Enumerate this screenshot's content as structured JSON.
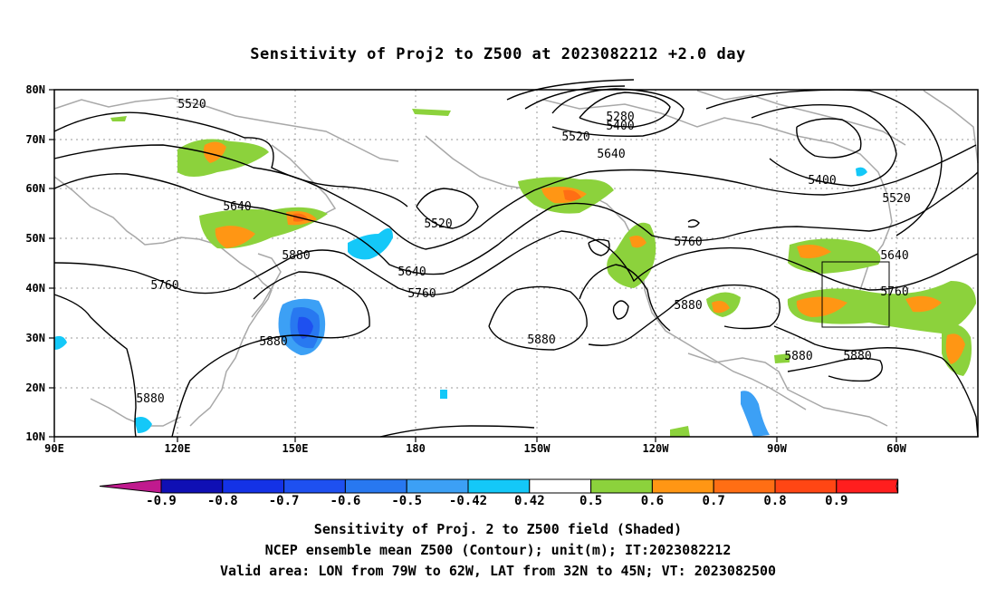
{
  "title": "Sensitivity of Proj2 to Z500 at 2023082212 +2.0 day",
  "captions": [
    "Sensitivity of Proj. 2 to Z500 field (Shaded)",
    "NCEP ensemble mean Z500 (Contour); unit(m); IT:2023082212",
    "Valid area: LON from 79W to 62W, LAT from 32N to 45N; VT: 2023082500"
  ],
  "lon_ticks": [
    "90E",
    "120E",
    "150E",
    "180",
    "150W",
    "120W",
    "90W",
    "60W"
  ],
  "lat_ticks": [
    "80N",
    "70N",
    "60N",
    "50N",
    "40N",
    "30N",
    "20N",
    "10N"
  ],
  "colorbar": {
    "labels": [
      "-0.9",
      "-0.8",
      "-0.7",
      "-0.6",
      "-0.5",
      "-0.42",
      "0.42",
      "0.5",
      "0.6",
      "0.7",
      "0.8",
      "0.9"
    ],
    "colors": [
      "#c01a8e",
      "#0f0fb4",
      "#1432e6",
      "#1e50f0",
      "#2878f0",
      "#3ca0f5",
      "#14c8f8",
      "#ffffff",
      "#8cd23c",
      "#ff9614",
      "#ff6e14",
      "#ff4614",
      "#ff1e1e",
      "#f5a0c8"
    ]
  },
  "contour_labels": [
    {
      "text": "5520"
    },
    {
      "text": "5280"
    },
    {
      "text": "5400"
    },
    {
      "text": "5520"
    },
    {
      "text": "5640"
    },
    {
      "text": "5400"
    },
    {
      "text": "5520"
    },
    {
      "text": "5640"
    },
    {
      "text": "5520"
    },
    {
      "text": "5760"
    },
    {
      "text": "5640"
    },
    {
      "text": "5880"
    },
    {
      "text": "5640"
    },
    {
      "text": "5760"
    },
    {
      "text": "5760"
    },
    {
      "text": "5760"
    },
    {
      "text": "5880"
    },
    {
      "text": "5880"
    },
    {
      "text": "5880"
    },
    {
      "text": "5880"
    },
    {
      "text": "5880"
    },
    {
      "text": "5880"
    }
  ],
  "valid_area": {
    "lon_range": "79W to 62W",
    "lat_range": "32N to 45N"
  }
}
